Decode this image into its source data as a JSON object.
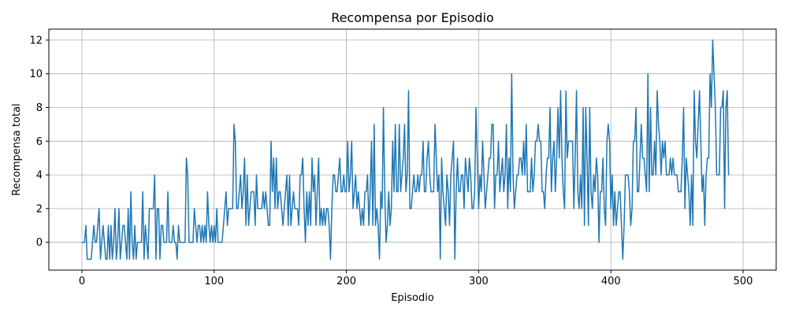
{
  "chart_data": {
    "type": "line",
    "title": "Recompensa por Episodio",
    "xlabel": "Episodio",
    "ylabel": "Recompensa total",
    "xlim": [
      -25,
      525
    ],
    "ylim": [
      -1.65,
      12.65
    ],
    "xticks": [
      0,
      100,
      200,
      300,
      400,
      500
    ],
    "yticks": [
      0,
      2,
      4,
      6,
      8,
      10,
      12
    ],
    "grid": true,
    "x_start": 0,
    "x_step": 1,
    "series": [
      {
        "color": "#1f77b4",
        "values": [
          0,
          0,
          0,
          1,
          -1,
          -1,
          -1,
          -1,
          0,
          1,
          0,
          0,
          1,
          2,
          -1,
          0,
          1,
          0,
          -1,
          -1,
          1,
          -1,
          1,
          -1,
          0,
          2,
          -1,
          0,
          2,
          -1,
          0,
          1,
          1,
          0,
          -1,
          2,
          -1,
          3,
          0,
          -1,
          1,
          -1,
          0,
          0,
          0,
          0,
          3,
          -1,
          1,
          0,
          -1,
          2,
          2,
          2,
          2,
          4,
          -1,
          2,
          2,
          -1,
          1,
          1,
          0,
          0,
          0,
          3,
          0,
          0,
          0,
          1,
          0,
          0,
          -1,
          1,
          0,
          0,
          0,
          0,
          0,
          5,
          4,
          0,
          0,
          0,
          0,
          2,
          1,
          0,
          1,
          1,
          0,
          1,
          0,
          1,
          0,
          3,
          1,
          0,
          1,
          0,
          1,
          0,
          2,
          0,
          0,
          0,
          0,
          1,
          2,
          3,
          1,
          2,
          2,
          2,
          2,
          7,
          6,
          2,
          2,
          3,
          4,
          2,
          3,
          5,
          1,
          4,
          1,
          2,
          3,
          3,
          3,
          1,
          4,
          2,
          2,
          2,
          2,
          3,
          2,
          3,
          2,
          1,
          1,
          6,
          3,
          5,
          2,
          5,
          2,
          3,
          3,
          2,
          1,
          2,
          3,
          4,
          1,
          4,
          1,
          2,
          3,
          2,
          2,
          2,
          1,
          4,
          4,
          5,
          2,
          0,
          3,
          1,
          3,
          1,
          5,
          3,
          4,
          1,
          3,
          5,
          1,
          2,
          1,
          2,
          1,
          2,
          2,
          1,
          -1,
          2,
          4,
          4,
          3,
          3,
          4,
          5,
          3,
          3,
          4,
          3,
          3,
          6,
          3,
          4,
          6,
          2,
          3,
          4,
          2,
          3,
          2,
          1,
          2,
          1,
          3,
          3,
          4,
          1,
          3,
          6,
          1,
          7,
          1,
          2,
          1,
          -1,
          3,
          2,
          8,
          3,
          0,
          1,
          3,
          1,
          2,
          6,
          3,
          7,
          3,
          3,
          7,
          3,
          4,
          5,
          7,
          3,
          4,
          9,
          2,
          2,
          3,
          4,
          3,
          3,
          4,
          3,
          4,
          4,
          6,
          3,
          3,
          5,
          6,
          4,
          3,
          3,
          3,
          7,
          5,
          3,
          4,
          -1,
          5,
          3,
          2,
          1,
          4,
          3,
          1,
          4,
          5,
          6,
          -1,
          3,
          5,
          3,
          3,
          4,
          4,
          2,
          5,
          4,
          3,
          5,
          4,
          2,
          2,
          3,
          8,
          5,
          2,
          4,
          3,
          6,
          4,
          2,
          3,
          4,
          5,
          5,
          7,
          7,
          2,
          4,
          4,
          6,
          3,
          4,
          5,
          3,
          4,
          7,
          2,
          5,
          3,
          10,
          4,
          2,
          3,
          4,
          4,
          5,
          5,
          4,
          6,
          4,
          7,
          3,
          3,
          3,
          5,
          3,
          4,
          6,
          6,
          7,
          6,
          6,
          3,
          3,
          2,
          4,
          5,
          5,
          8,
          3,
          5,
          6,
          3,
          5,
          8,
          5,
          9,
          5,
          3,
          2,
          9,
          5,
          6,
          6,
          6,
          6,
          2,
          5,
          9,
          3,
          2,
          4,
          2,
          8,
          1,
          8,
          5,
          1,
          8,
          3,
          2,
          4,
          3,
          5,
          4,
          0,
          3,
          3,
          5,
          2,
          1,
          6,
          7,
          6,
          2,
          4,
          1,
          3,
          1,
          2,
          3,
          3,
          1,
          -1,
          1,
          4,
          4,
          4,
          3,
          1,
          2,
          6,
          6,
          8,
          3,
          3,
          5,
          7,
          5,
          5,
          4,
          3,
          10,
          3,
          8,
          4,
          4,
          6,
          4,
          9,
          7,
          6,
          4,
          6,
          5,
          6,
          4,
          4,
          4,
          5,
          4,
          5,
          4,
          4,
          4,
          3,
          3,
          3,
          5,
          8,
          2,
          5,
          4,
          3,
          1,
          4,
          1,
          9,
          6,
          5,
          7,
          9,
          6,
          3,
          4,
          1,
          4,
          5,
          5,
          10,
          8,
          12,
          10,
          8,
          4,
          4,
          4,
          8,
          8,
          9,
          2,
          8,
          9,
          4
        ]
      }
    ]
  }
}
